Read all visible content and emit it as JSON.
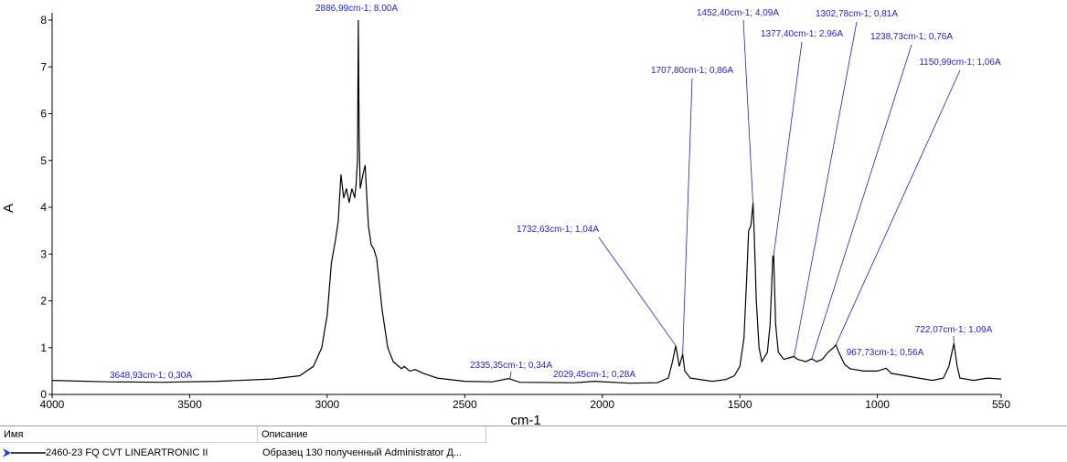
{
  "chart_data": {
    "type": "line",
    "xlabel": "cm-1",
    "ylabel": "A",
    "xlim": [
      4000,
      550
    ],
    "xticks": [
      4000,
      3500,
      3000,
      2500,
      2000,
      1500,
      1000,
      550
    ],
    "ylim": [
      0,
      8
    ],
    "yticks": [
      0,
      1,
      2,
      3,
      4,
      5,
      6,
      7,
      8
    ],
    "grid": false,
    "x": [
      4000,
      3800,
      3600,
      3400,
      3200,
      3100,
      3050,
      3020,
      3000,
      2985,
      2970,
      2960,
      2950,
      2940,
      2930,
      2920,
      2910,
      2900,
      2895,
      2890,
      2887,
      2884,
      2880,
      2870,
      2862,
      2855,
      2850,
      2840,
      2830,
      2820,
      2800,
      2780,
      2760,
      2730,
      2720,
      2700,
      2680,
      2650,
      2600,
      2500,
      2400,
      2340,
      2300,
      2100,
      2029,
      1900,
      1800,
      1760,
      1745,
      1733,
      1720,
      1708,
      1700,
      1680,
      1600,
      1550,
      1520,
      1500,
      1485,
      1475,
      1468,
      1460,
      1455,
      1452,
      1448,
      1440,
      1430,
      1420,
      1400,
      1390,
      1380,
      1377,
      1370,
      1360,
      1340,
      1310,
      1303,
      1290,
      1260,
      1239,
      1220,
      1200,
      1180,
      1160,
      1151,
      1140,
      1120,
      1100,
      1050,
      1000,
      968,
      950,
      900,
      850,
      800,
      760,
      740,
      722,
      710,
      700,
      650,
      600,
      550
    ],
    "series": [
      {
        "name": "2460-23 FQ CVT LINEARTRONIC II",
        "color": "#000000",
        "values": [
          0.3,
          0.27,
          0.26,
          0.28,
          0.33,
          0.4,
          0.6,
          1.0,
          1.7,
          2.8,
          3.3,
          3.7,
          4.7,
          4.2,
          4.4,
          4.1,
          4.4,
          4.2,
          4.5,
          5.0,
          8.0,
          5.5,
          4.4,
          4.7,
          4.9,
          4.1,
          3.6,
          3.2,
          3.1,
          2.9,
          1.8,
          1.0,
          0.7,
          0.55,
          0.6,
          0.5,
          0.53,
          0.45,
          0.35,
          0.28,
          0.27,
          0.34,
          0.26,
          0.25,
          0.28,
          0.24,
          0.25,
          0.35,
          0.7,
          1.04,
          0.6,
          0.86,
          0.5,
          0.35,
          0.28,
          0.32,
          0.4,
          0.6,
          1.2,
          2.5,
          3.5,
          3.6,
          3.9,
          4.09,
          3.5,
          2.0,
          1.0,
          0.7,
          0.9,
          1.5,
          2.96,
          2.96,
          1.5,
          0.9,
          0.75,
          0.8,
          0.81,
          0.75,
          0.7,
          0.76,
          0.7,
          0.75,
          0.9,
          1.0,
          1.06,
          0.9,
          0.65,
          0.55,
          0.5,
          0.5,
          0.56,
          0.45,
          0.4,
          0.35,
          0.3,
          0.35,
          0.6,
          1.09,
          0.6,
          0.35,
          0.3,
          0.35,
          0.33
        ]
      }
    ],
    "annotations": [
      {
        "label": "2886,99cm-1; 8,00A",
        "x": 2886.99,
        "y": 8.0
      },
      {
        "label": "1452,40cm-1; 4,09A",
        "x": 1452.4,
        "y": 4.09
      },
      {
        "label": "1377,40cm-1; 2,96A",
        "x": 1377.4,
        "y": 2.96
      },
      {
        "label": "1302,78cm-1; 0,81A",
        "x": 1302.78,
        "y": 0.81
      },
      {
        "label": "1238,73cm-1; 0,76A",
        "x": 1238.73,
        "y": 0.76
      },
      {
        "label": "1150,99cm-1; 1,06A",
        "x": 1150.99,
        "y": 1.06
      },
      {
        "label": "1707,80cm-1; 0,86A",
        "x": 1707.8,
        "y": 0.86
      },
      {
        "label": "1732,63cm-1; 1,04A",
        "x": 1732.63,
        "y": 1.04
      },
      {
        "label": "3648,93cm-1; 0,30A",
        "x": 3648.93,
        "y": 0.3
      },
      {
        "label": "2335,35cm-1; 0,34A",
        "x": 2335.35,
        "y": 0.34
      },
      {
        "label": "2029,45cm-1; 0,28A",
        "x": 2029.45,
        "y": 0.28
      },
      {
        "label": "967,73cm-1; 0,56A",
        "x": 967.73,
        "y": 0.56
      },
      {
        "label": "722,07cm-1; 1,09A",
        "x": 722.07,
        "y": 1.09
      }
    ]
  },
  "table": {
    "headers": [
      "Имя",
      "Описание"
    ],
    "rows": [
      [
        "2460-23 FQ CVT LINEARTRONIC II",
        "Образец 130 полученный Administrator Д..."
      ]
    ]
  }
}
